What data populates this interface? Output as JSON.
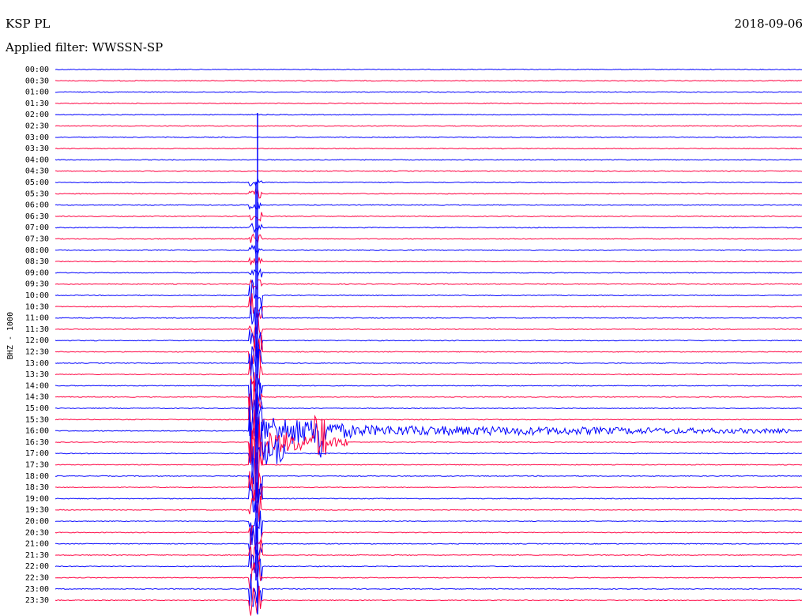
{
  "header": {
    "station": "KSP PL",
    "date": "2018-09-06",
    "filter": "Applied filter: WWSSN-SP"
  },
  "axis_label": "BHZ - 1000",
  "rows": [
    "00:00",
    "00:30",
    "01:00",
    "01:30",
    "02:00",
    "02:30",
    "03:00",
    "03:30",
    "04:00",
    "04:30",
    "05:00",
    "05:30",
    "06:00",
    "06:30",
    "07:00",
    "07:30",
    "08:00",
    "08:30",
    "09:00",
    "09:30",
    "10:00",
    "10:30",
    "11:00",
    "11:30",
    "12:00",
    "12:30",
    "13:00",
    "13:30",
    "14:00",
    "14:30",
    "15:00",
    "15:30",
    "16:00",
    "16:30",
    "17:00",
    "17:30",
    "18:00",
    "18:30",
    "19:00",
    "19:30",
    "20:00",
    "20:30",
    "21:00",
    "21:30",
    "22:00",
    "22:30",
    "23:00",
    "23:30"
  ]
}
